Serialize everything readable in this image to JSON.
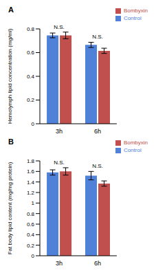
{
  "chart_data": [
    {
      "type": "bar",
      "title": "A",
      "y_label": "Hemolymph lipid concentration (mg/ml)",
      "categories": [
        "3h",
        "6h"
      ],
      "series": [
        {
          "name": "Control",
          "color": "#4f81d9",
          "values": [
            0.745,
            0.665
          ],
          "errors": [
            0.02,
            0.022
          ]
        },
        {
          "name": "Bombyxin",
          "color": "#c0504d",
          "values": [
            0.745,
            0.615
          ],
          "errors": [
            0.028,
            0.022
          ]
        }
      ],
      "ylim": [
        0,
        0.8
      ],
      "yticks": [
        0,
        0.2,
        0.4,
        0.6,
        0.8
      ],
      "legend": "top-right",
      "annotations": [
        {
          "text": "N.S.",
          "category": "3h"
        },
        {
          "text": "N.S.",
          "category": "6h"
        }
      ]
    },
    {
      "type": "bar",
      "title": "B",
      "y_label": "Fat body lipid content (mg/mg protein)",
      "categories": [
        "3h",
        "6h"
      ],
      "series": [
        {
          "name": "Control",
          "color": "#4f81d9",
          "values": [
            1.58,
            1.52
          ],
          "errors": [
            0.05,
            0.08
          ]
        },
        {
          "name": "Bombyxin",
          "color": "#c0504d",
          "values": [
            1.6,
            1.37
          ],
          "errors": [
            0.07,
            0.05
          ]
        }
      ],
      "ylim": [
        0,
        1.8
      ],
      "yticks": [
        0,
        0.2,
        0.4,
        0.6,
        0.8,
        1,
        1.2,
        1.4,
        1.6,
        1.8
      ],
      "legend": "top-right",
      "annotations": [
        {
          "text": "N.S.",
          "category": "3h"
        },
        {
          "text": "N.S.",
          "category": "6h"
        }
      ]
    }
  ]
}
